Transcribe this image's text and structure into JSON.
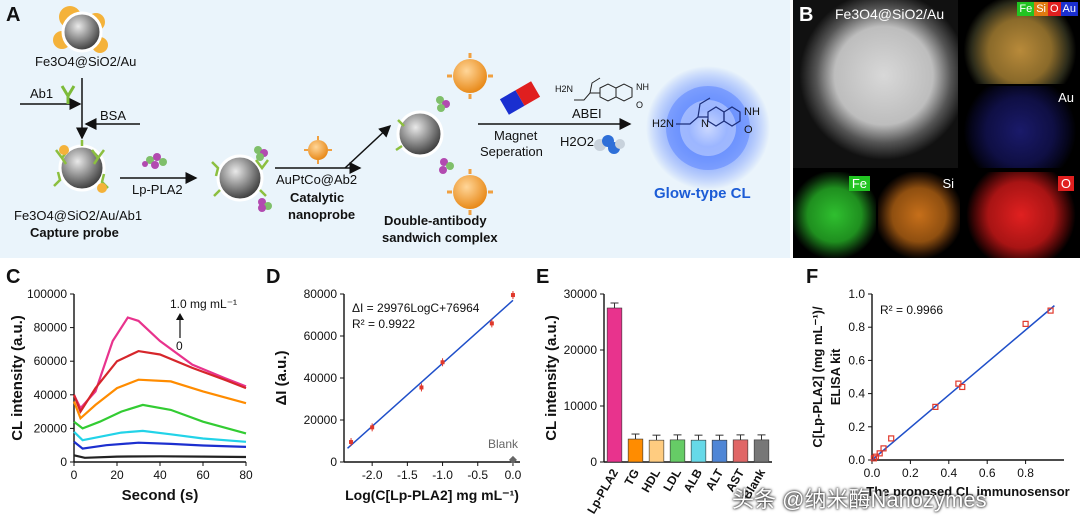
{
  "panel_a": {
    "label": "A",
    "capture_material": "Fe3O4@SiO2/Au",
    "ab1": "Ab1",
    "bsa": "BSA",
    "capture_probe_formula": "Fe3O4@SiO2/Au/Ab1",
    "capture_probe": "Capture probe",
    "lp_pla2": "Lp-PLA2",
    "nanoprobe_formula": "AuPtCo@Ab2",
    "nanoprobe_1": "Catalytic",
    "nanoprobe_2": "nanoprobe",
    "sandwich_1": "Double-antibody",
    "sandwich_2": "sandwich complex",
    "magnet_1": "Magnet",
    "magnet_2": "Seperation",
    "abei": "ABEI",
    "h2o2": "H2O2",
    "glow": "Glow-type CL",
    "chem_nh": "NH",
    "chem_o": "O",
    "chem_h2n": "H2N",
    "chem_n": "N"
  },
  "panel_b": {
    "label": "B",
    "main_title": "Fe3O4@SiO2/Au",
    "maps": [
      "FeSiOAu",
      "Au",
      "Fe",
      "Si",
      "O"
    ],
    "merge_tags": [
      "Fe",
      "Si",
      "O",
      "Au"
    ]
  },
  "chart_c": {
    "label": "C",
    "type": "line",
    "xlabel": "Second (s)",
    "ylabel": "CL intensity (a.u.)",
    "xlim": [
      0,
      80
    ],
    "ylim": [
      0,
      100000
    ],
    "x_ticks": [
      "0",
      "20",
      "40",
      "60",
      "80"
    ],
    "y_ticks": [
      "0",
      "20000",
      "40000",
      "60000",
      "80000",
      "100000"
    ],
    "annot_top": "1.0 mg mL⁻¹",
    "annot_bottom": "0",
    "series": [
      {
        "color": "#e8338d",
        "points": [
          [
            0,
            40000
          ],
          [
            3,
            32000
          ],
          [
            10,
            42000
          ],
          [
            18,
            72000
          ],
          [
            25,
            86000
          ],
          [
            30,
            84000
          ],
          [
            40,
            72000
          ],
          [
            55,
            58000
          ],
          [
            70,
            50000
          ],
          [
            80,
            45000
          ]
        ]
      },
      {
        "color": "#d6262b",
        "points": [
          [
            0,
            40000
          ],
          [
            3,
            30000
          ],
          [
            10,
            44000
          ],
          [
            20,
            60000
          ],
          [
            30,
            66000
          ],
          [
            40,
            64000
          ],
          [
            55,
            56000
          ],
          [
            70,
            49000
          ],
          [
            80,
            44000
          ]
        ]
      },
      {
        "color": "#ff8c00",
        "points": [
          [
            0,
            36000
          ],
          [
            3,
            26000
          ],
          [
            10,
            34000
          ],
          [
            20,
            44000
          ],
          [
            30,
            49000
          ],
          [
            45,
            48000
          ],
          [
            60,
            42000
          ],
          [
            80,
            35000
          ]
        ]
      },
      {
        "color": "#33cc33",
        "points": [
          [
            0,
            24000
          ],
          [
            4,
            20000
          ],
          [
            12,
            24000
          ],
          [
            22,
            30000
          ],
          [
            32,
            34000
          ],
          [
            45,
            31000
          ],
          [
            60,
            24000
          ],
          [
            80,
            17000
          ]
        ]
      },
      {
        "color": "#22d3e8",
        "points": [
          [
            0,
            18000
          ],
          [
            4,
            13000
          ],
          [
            12,
            15000
          ],
          [
            22,
            17500
          ],
          [
            32,
            18500
          ],
          [
            45,
            16500
          ],
          [
            60,
            14000
          ],
          [
            80,
            12000
          ]
        ]
      },
      {
        "color": "#1c2fcf",
        "points": [
          [
            0,
            12000
          ],
          [
            4,
            8000
          ],
          [
            15,
            10000
          ],
          [
            30,
            11500
          ],
          [
            45,
            10800
          ],
          [
            60,
            9800
          ],
          [
            80,
            9000
          ]
        ]
      },
      {
        "color": "#222222",
        "points": [
          [
            0,
            4000
          ],
          [
            5,
            2500
          ],
          [
            20,
            3200
          ],
          [
            40,
            3400
          ],
          [
            60,
            3200
          ],
          [
            80,
            3000
          ]
        ]
      }
    ]
  },
  "chart_d": {
    "label": "D",
    "type": "scatter",
    "xlabel": "Log(C[Lp-PLA2] mg mL⁻¹)",
    "ylabel": "ΔI (a.u.)",
    "equation": "ΔI = 29976LogC+76964",
    "r2": "R² = 0.9922",
    "blank_label": "Blank",
    "xlim": [
      -2.4,
      0.1
    ],
    "ylim": [
      0,
      80000
    ],
    "x_ticks": [
      "-2.0",
      "-1.5",
      "-1.0",
      "-0.5",
      "0.0"
    ],
    "y_ticks": [
      "0",
      "20000",
      "40000",
      "60000",
      "80000"
    ],
    "points": [
      [
        -2.3,
        9500
      ],
      [
        -2.0,
        16500
      ],
      [
        -1.3,
        35500
      ],
      [
        -1.0,
        47500
      ],
      [
        -0.3,
        66000
      ],
      [
        0.0,
        79500
      ]
    ],
    "blank_point": [
      0.0,
      1000
    ],
    "fit": [
      [
        -2.35,
        6500
      ],
      [
        0.0,
        77000
      ]
    ]
  },
  "chart_e": {
    "label": "E",
    "type": "bar",
    "ylabel": "CL intensity (a.u.)",
    "ylim": [
      0,
      30000
    ],
    "y_ticks": [
      "0",
      "10000",
      "20000",
      "30000"
    ],
    "categories": [
      "Lp-PLA2",
      "TG",
      "HDL",
      "LDL",
      "ALB",
      "ALT",
      "AST",
      "Blank"
    ],
    "values": [
      27500,
      4100,
      3900,
      3950,
      3900,
      3900,
      3950,
      3950
    ],
    "colors": [
      "#e8338d",
      "#ff8c00",
      "#ffcc80",
      "#66cc66",
      "#66d9e8",
      "#4f86d6",
      "#e06666",
      "#777777"
    ]
  },
  "chart_f": {
    "label": "F",
    "type": "scatter",
    "ylabel_1": "C[Lp-PLA2] (mg mL⁻¹)/",
    "ylabel_2": "ELISA kit",
    "xlabel": "The proposed CL immunosensor",
    "r2": "R² = 0.9966",
    "xlim": [
      0,
      1.0
    ],
    "ylim": [
      0,
      1.0
    ],
    "x_ticks": [
      "0.0",
      "0.2",
      "0.4",
      "0.6",
      "0.8"
    ],
    "y_ticks": [
      "0.0",
      "0.2",
      "0.4",
      "0.6",
      "0.8",
      "1.0"
    ],
    "points": [
      [
        0.01,
        0.01
      ],
      [
        0.02,
        0.02
      ],
      [
        0.04,
        0.04
      ],
      [
        0.06,
        0.07
      ],
      [
        0.1,
        0.13
      ],
      [
        0.33,
        0.32
      ],
      [
        0.45,
        0.46
      ],
      [
        0.47,
        0.44
      ],
      [
        0.8,
        0.82
      ],
      [
        0.93,
        0.9
      ]
    ],
    "fit": [
      [
        0.0,
        0.0
      ],
      [
        0.95,
        0.93
      ]
    ]
  },
  "watermark": "头条 @纳米酶Nanozymes",
  "colors": {
    "panel_bg": "#eaf4fb",
    "fit_line": "#1f4fc9",
    "point": "#e0382b",
    "glow": "#1c5cd6"
  }
}
